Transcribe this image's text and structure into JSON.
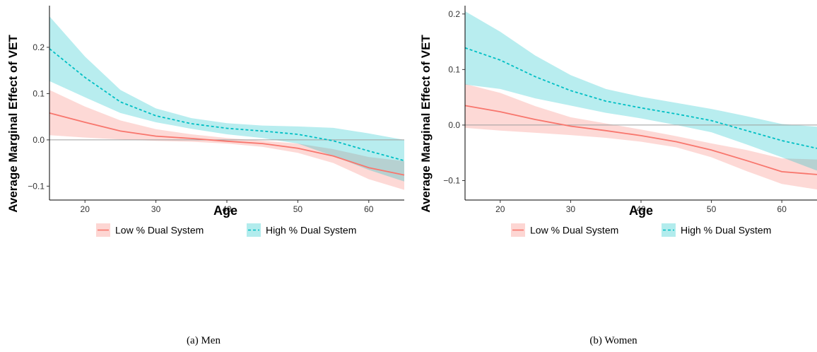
{
  "chart_data": [
    {
      "type": "line",
      "caption": "(a)  Men",
      "xlabel": "Age",
      "ylabel": "Average Marginal Effect of VET",
      "xlim": [
        15,
        65
      ],
      "ylim": [
        -0.13,
        0.29
      ],
      "xticks": [
        20,
        30,
        40,
        50,
        60
      ],
      "yticks": [
        -0.1,
        0.0,
        0.1,
        0.2
      ],
      "ytick_labels": [
        "−0.1",
        "0.0",
        "0.1",
        "0.2"
      ],
      "reference_line": 0,
      "legend_position": "bottom",
      "x": [
        15,
        20,
        25,
        30,
        35,
        40,
        45,
        50,
        55,
        60,
        65
      ],
      "series": [
        {
          "name": "Low % Dual System",
          "line_style": "solid",
          "color": "#f8766d",
          "band_color": "#f8766d",
          "values": [
            0.058,
            0.038,
            0.019,
            0.008,
            0.003,
            -0.003,
            -0.008,
            -0.018,
            -0.035,
            -0.06,
            -0.076
          ],
          "lower": [
            0.01,
            0.005,
            0.001,
            -0.002,
            -0.004,
            -0.008,
            -0.015,
            -0.028,
            -0.05,
            -0.085,
            -0.108
          ],
          "upper": [
            0.108,
            0.072,
            0.042,
            0.023,
            0.012,
            0.004,
            -0.002,
            -0.008,
            -0.02,
            -0.037,
            -0.046
          ]
        },
        {
          "name": "High % Dual System",
          "line_style": "dashed",
          "color": "#00bfc4",
          "band_color": "#00bfc4",
          "values": [
            0.197,
            0.135,
            0.082,
            0.052,
            0.035,
            0.025,
            0.019,
            0.012,
            -0.002,
            -0.024,
            -0.045
          ],
          "lower": [
            0.127,
            0.092,
            0.058,
            0.038,
            0.024,
            0.012,
            0.004,
            -0.008,
            -0.035,
            -0.065,
            -0.09
          ],
          "upper": [
            0.267,
            0.18,
            0.108,
            0.068,
            0.047,
            0.036,
            0.031,
            0.029,
            0.026,
            0.014,
            0.0
          ]
        }
      ]
    },
    {
      "type": "line",
      "caption": "(b)  Women",
      "xlabel": "Age",
      "ylabel": "Average Marginal Effect of VET",
      "xlim": [
        15,
        65
      ],
      "ylim": [
        -0.135,
        0.215
      ],
      "xticks": [
        20,
        30,
        40,
        50,
        60
      ],
      "yticks": [
        -0.1,
        0.0,
        0.1,
        0.2
      ],
      "ytick_labels": [
        "−0.1",
        "0.0",
        "0.1",
        "0.2"
      ],
      "reference_line": 0,
      "legend_position": "bottom",
      "x": [
        15,
        20,
        25,
        30,
        35,
        40,
        45,
        50,
        55,
        60,
        65
      ],
      "series": [
        {
          "name": "Low % Dual System",
          "line_style": "solid",
          "color": "#f8766d",
          "band_color": "#f8766d",
          "values": [
            0.035,
            0.024,
            0.01,
            -0.002,
            -0.01,
            -0.019,
            -0.03,
            -0.045,
            -0.064,
            -0.084,
            -0.089
          ],
          "lower": [
            -0.005,
            -0.01,
            -0.014,
            -0.018,
            -0.023,
            -0.03,
            -0.04,
            -0.058,
            -0.083,
            -0.106,
            -0.116
          ],
          "upper": [
            0.074,
            0.058,
            0.034,
            0.014,
            0.003,
            -0.008,
            -0.02,
            -0.033,
            -0.045,
            -0.06,
            -0.062
          ]
        },
        {
          "name": "High % Dual System",
          "line_style": "dashed",
          "color": "#00bfc4",
          "band_color": "#00bfc4",
          "values": [
            0.139,
            0.117,
            0.087,
            0.062,
            0.043,
            0.031,
            0.02,
            0.008,
            -0.01,
            -0.028,
            -0.042
          ],
          "lower": [
            0.073,
            0.065,
            0.048,
            0.035,
            0.022,
            0.012,
            0.0,
            -0.013,
            -0.035,
            -0.058,
            -0.082
          ],
          "upper": [
            0.205,
            0.168,
            0.125,
            0.09,
            0.065,
            0.051,
            0.04,
            0.029,
            0.016,
            0.002,
            -0.003
          ]
        }
      ]
    }
  ]
}
